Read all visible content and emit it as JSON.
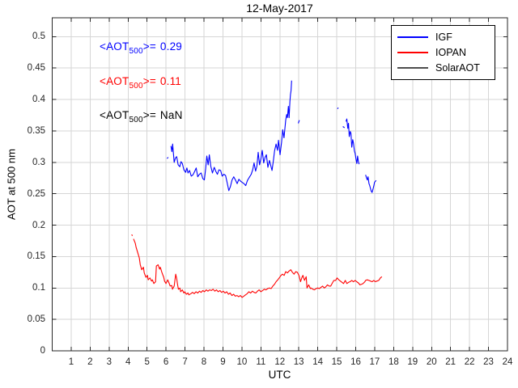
{
  "chart_data": {
    "type": "line",
    "title": "12-May-2017",
    "xlabel": "UTC",
    "ylabel": "AOT at 500 nm",
    "xlim": [
      0,
      24
    ],
    "ylim": [
      0,
      0.53
    ],
    "grid": true,
    "grid_color": "#d6d6d6",
    "axis_color": "#262626",
    "legend_position": "top-right",
    "x_ticks": [
      1,
      2,
      3,
      4,
      5,
      6,
      7,
      8,
      9,
      10,
      11,
      12,
      13,
      14,
      15,
      16,
      17,
      18,
      19,
      20,
      21,
      22,
      23,
      24
    ],
    "y_ticks": [
      0,
      0.05,
      0.1,
      0.15,
      0.2,
      0.25,
      0.3,
      0.35,
      0.4,
      0.45,
      0.5
    ],
    "y_tick_labels": [
      "0",
      "0.05",
      "0.1",
      "0.15",
      "0.2",
      "0.25",
      "0.3",
      "0.35",
      "0.4",
      "0.45",
      "0.5"
    ],
    "series": [
      {
        "name": "IGF",
        "color": "#0000ff",
        "mean_label": "0.29",
        "points": [
          [
            6.05,
            0.306
          ],
          [
            6.12,
            0.308
          ],
          null,
          [
            6.26,
            0.326
          ],
          [
            6.31,
            0.317
          ],
          [
            6.35,
            0.329
          ],
          [
            6.43,
            0.3
          ],
          [
            6.5,
            0.307
          ],
          [
            6.56,
            0.309
          ],
          [
            6.64,
            0.296
          ],
          [
            6.73,
            0.293
          ],
          [
            6.79,
            0.301
          ],
          [
            6.86,
            0.298
          ],
          [
            6.94,
            0.288
          ],
          [
            7.03,
            0.284
          ],
          [
            7.1,
            0.291
          ],
          [
            7.16,
            0.283
          ],
          [
            7.24,
            0.287
          ],
          [
            7.33,
            0.278
          ],
          [
            7.42,
            0.28
          ],
          [
            7.5,
            0.285
          ],
          [
            7.59,
            0.291
          ],
          [
            7.67,
            0.277
          ],
          [
            7.76,
            0.281
          ],
          [
            7.85,
            0.283
          ],
          [
            7.94,
            0.274
          ],
          [
            8.02,
            0.272
          ],
          [
            8.09,
            0.29
          ],
          [
            8.15,
            0.31
          ],
          [
            8.22,
            0.296
          ],
          [
            8.28,
            0.312
          ],
          [
            8.36,
            0.294
          ],
          [
            8.45,
            0.283
          ],
          [
            8.54,
            0.292
          ],
          [
            8.62,
            0.286
          ],
          [
            8.71,
            0.281
          ],
          [
            8.79,
            0.288
          ],
          [
            8.88,
            0.287
          ],
          [
            8.96,
            0.278
          ],
          [
            9.05,
            0.281
          ],
          [
            9.14,
            0.279
          ],
          [
            9.22,
            0.268
          ],
          [
            9.31,
            0.255
          ],
          [
            9.39,
            0.261
          ],
          [
            9.48,
            0.272
          ],
          [
            9.57,
            0.277
          ],
          [
            9.66,
            0.272
          ],
          [
            9.75,
            0.266
          ],
          [
            9.84,
            0.273
          ],
          [
            9.93,
            0.27
          ],
          [
            10.02,
            0.268
          ],
          [
            10.11,
            0.266
          ],
          [
            10.2,
            0.263
          ],
          [
            10.29,
            0.271
          ],
          [
            10.39,
            0.276
          ],
          [
            10.49,
            0.281
          ],
          [
            10.57,
            0.288
          ],
          [
            10.64,
            0.299
          ],
          [
            10.72,
            0.286
          ],
          [
            10.79,
            0.294
          ],
          [
            10.86,
            0.316
          ],
          [
            10.93,
            0.296
          ],
          [
            11.0,
            0.305
          ],
          [
            11.07,
            0.319
          ],
          [
            11.15,
            0.299
          ],
          [
            11.22,
            0.308
          ],
          [
            11.29,
            0.312
          ],
          [
            11.37,
            0.292
          ],
          [
            11.45,
            0.303
          ],
          [
            11.52,
            0.295
          ],
          [
            11.59,
            0.287
          ],
          [
            11.66,
            0.303
          ],
          [
            11.72,
            0.318
          ],
          [
            11.8,
            0.329
          ],
          [
            11.88,
            0.319
          ],
          [
            11.93,
            0.335
          ],
          [
            12.01,
            0.312
          ],
          [
            12.09,
            0.332
          ],
          [
            12.15,
            0.352
          ],
          [
            12.22,
            0.339
          ],
          [
            12.31,
            0.367
          ],
          [
            12.36,
            0.376
          ],
          [
            12.4,
            0.371
          ],
          [
            12.45,
            0.389
          ],
          [
            12.49,
            0.371
          ],
          [
            12.53,
            0.397
          ],
          [
            12.56,
            0.408
          ],
          [
            12.59,
            0.414
          ],
          [
            12.62,
            0.43
          ],
          null,
          [
            12.97,
            0.362
          ],
          [
            13.03,
            0.367
          ],
          null,
          [
            15.04,
            0.385
          ],
          [
            15.08,
            0.387
          ],
          null,
          [
            15.32,
            0.357
          ],
          [
            15.41,
            0.355
          ],
          null,
          [
            15.49,
            0.365
          ],
          [
            15.53,
            0.369
          ],
          [
            15.58,
            0.354
          ],
          [
            15.62,
            0.362
          ],
          [
            15.66,
            0.341
          ],
          [
            15.71,
            0.349
          ],
          [
            15.75,
            0.346
          ],
          [
            15.79,
            0.324
          ],
          [
            15.84,
            0.336
          ],
          [
            15.88,
            0.331
          ],
          [
            15.93,
            0.318
          ],
          [
            15.97,
            0.314
          ],
          [
            16.02,
            0.304
          ],
          [
            16.06,
            0.298
          ],
          [
            16.1,
            0.31
          ],
          [
            16.14,
            0.301
          ],
          [
            16.18,
            0.297
          ],
          null,
          [
            16.52,
            0.28
          ],
          [
            16.57,
            0.275
          ],
          [
            16.61,
            0.272
          ],
          [
            16.65,
            0.277
          ],
          [
            16.7,
            0.266
          ],
          [
            16.74,
            0.263
          ],
          [
            16.78,
            0.258
          ],
          [
            16.82,
            0.254
          ],
          [
            16.86,
            0.252
          ],
          [
            16.91,
            0.257
          ],
          [
            16.95,
            0.262
          ],
          [
            16.99,
            0.268
          ],
          [
            17.04,
            0.27
          ],
          [
            17.08,
            0.271
          ]
        ]
      },
      {
        "name": "IOPAN",
        "color": "#ff0000",
        "mean_label": "0.11",
        "points": [
          [
            4.19,
            0.185
          ],
          [
            4.23,
            0.183
          ],
          null,
          [
            4.29,
            0.178
          ],
          [
            4.38,
            0.171
          ],
          [
            4.42,
            0.165
          ],
          [
            4.51,
            0.156
          ],
          [
            4.59,
            0.148
          ],
          [
            4.64,
            0.137
          ],
          [
            4.72,
            0.129
          ],
          [
            4.81,
            0.133
          ],
          [
            4.85,
            0.124
          ],
          [
            4.94,
            0.117
          ],
          [
            5.02,
            0.12
          ],
          [
            5.06,
            0.113
          ],
          [
            5.15,
            0.116
          ],
          [
            5.24,
            0.111
          ],
          [
            5.28,
            0.113
          ],
          [
            5.36,
            0.107
          ],
          [
            5.45,
            0.11
          ],
          [
            5.49,
            0.135
          ],
          [
            5.58,
            0.137
          ],
          [
            5.66,
            0.13
          ],
          [
            5.7,
            0.133
          ],
          [
            5.79,
            0.124
          ],
          [
            5.88,
            0.117
          ],
          [
            5.92,
            0.111
          ],
          [
            6.0,
            0.107
          ],
          [
            6.09,
            0.113
          ],
          [
            6.13,
            0.11
          ],
          [
            6.22,
            0.103
          ],
          [
            6.3,
            0.104
          ],
          [
            6.34,
            0.098
          ],
          [
            6.43,
            0.103
          ],
          [
            6.51,
            0.122
          ],
          [
            6.56,
            0.115
          ],
          [
            6.6,
            0.107
          ],
          [
            6.65,
            0.098
          ],
          [
            6.73,
            0.1
          ],
          [
            6.77,
            0.094
          ],
          [
            6.86,
            0.097
          ],
          [
            6.94,
            0.092
          ],
          [
            6.99,
            0.094
          ],
          [
            7.07,
            0.09
          ],
          [
            7.16,
            0.092
          ],
          [
            7.2,
            0.089
          ],
          [
            7.31,
            0.091
          ],
          [
            7.4,
            0.093
          ],
          [
            7.49,
            0.091
          ],
          [
            7.58,
            0.094
          ],
          [
            7.67,
            0.092
          ],
          [
            7.76,
            0.095
          ],
          [
            7.85,
            0.093
          ],
          [
            7.94,
            0.096
          ],
          [
            8.03,
            0.094
          ],
          [
            8.12,
            0.097
          ],
          [
            8.21,
            0.095
          ],
          [
            8.3,
            0.097
          ],
          [
            8.39,
            0.096
          ],
          [
            8.48,
            0.098
          ],
          [
            8.57,
            0.095
          ],
          [
            8.66,
            0.097
          ],
          [
            8.75,
            0.094
          ],
          [
            8.84,
            0.096
          ],
          [
            8.93,
            0.093
          ],
          [
            9.02,
            0.095
          ],
          [
            9.11,
            0.092
          ],
          [
            9.2,
            0.094
          ],
          [
            9.29,
            0.09
          ],
          [
            9.38,
            0.092
          ],
          [
            9.47,
            0.088
          ],
          [
            9.56,
            0.09
          ],
          [
            9.65,
            0.087
          ],
          [
            9.74,
            0.088
          ],
          [
            9.83,
            0.086
          ],
          [
            9.92,
            0.088
          ],
          [
            10.01,
            0.085
          ],
          [
            10.1,
            0.087
          ],
          [
            10.19,
            0.089
          ],
          [
            10.28,
            0.091
          ],
          [
            10.37,
            0.094
          ],
          [
            10.46,
            0.092
          ],
          [
            10.55,
            0.095
          ],
          [
            10.64,
            0.093
          ],
          [
            10.73,
            0.092
          ],
          [
            10.82,
            0.095
          ],
          [
            10.91,
            0.097
          ],
          [
            11.0,
            0.094
          ],
          [
            11.09,
            0.096
          ],
          [
            11.18,
            0.098
          ],
          [
            11.27,
            0.097
          ],
          [
            11.36,
            0.099
          ],
          [
            11.45,
            0.1
          ],
          [
            11.54,
            0.099
          ],
          [
            11.63,
            0.103
          ],
          [
            11.72,
            0.106
          ],
          [
            11.8,
            0.11
          ],
          [
            11.89,
            0.113
          ],
          [
            11.97,
            0.116
          ],
          [
            12.06,
            0.12
          ],
          [
            12.14,
            0.122
          ],
          [
            12.23,
            0.12
          ],
          [
            12.31,
            0.126
          ],
          [
            12.4,
            0.124
          ],
          [
            12.49,
            0.127
          ],
          [
            12.58,
            0.129
          ],
          [
            12.66,
            0.125
          ],
          [
            12.75,
            0.122
          ],
          [
            12.84,
            0.126
          ],
          [
            12.92,
            0.125
          ],
          [
            13.01,
            0.12
          ],
          [
            13.09,
            0.11
          ],
          [
            13.18,
            0.118
          ],
          [
            13.22,
            0.12
          ],
          [
            13.3,
            0.112
          ],
          [
            13.39,
            0.118
          ],
          [
            13.43,
            0.1
          ],
          [
            13.52,
            0.105
          ],
          [
            13.61,
            0.099
          ],
          [
            13.65,
            0.1
          ],
          [
            13.74,
            0.098
          ],
          [
            13.82,
            0.097
          ],
          [
            13.91,
            0.099
          ],
          [
            14.0,
            0.1
          ],
          [
            14.08,
            0.099
          ],
          [
            14.17,
            0.101
          ],
          [
            14.25,
            0.103
          ],
          [
            14.34,
            0.1
          ],
          [
            14.43,
            0.102
          ],
          [
            14.51,
            0.105
          ],
          [
            14.6,
            0.103
          ],
          [
            14.68,
            0.103
          ],
          [
            14.77,
            0.108
          ],
          [
            14.85,
            0.112
          ],
          [
            14.94,
            0.112
          ],
          [
            15.02,
            0.116
          ],
          [
            15.11,
            0.113
          ],
          [
            15.19,
            0.111
          ],
          [
            15.28,
            0.109
          ],
          [
            15.36,
            0.107
          ],
          [
            15.45,
            0.112
          ],
          [
            15.53,
            0.107
          ],
          [
            15.62,
            0.109
          ],
          [
            15.7,
            0.11
          ],
          [
            15.79,
            0.112
          ],
          [
            15.88,
            0.11
          ],
          [
            15.97,
            0.112
          ],
          [
            16.05,
            0.11
          ],
          [
            16.14,
            0.108
          ],
          [
            16.22,
            0.105
          ],
          [
            16.31,
            0.106
          ],
          [
            16.39,
            0.107
          ],
          [
            16.48,
            0.11
          ],
          [
            16.52,
            0.112
          ],
          [
            16.61,
            0.113
          ],
          [
            16.69,
            0.112
          ],
          [
            16.78,
            0.111
          ],
          [
            16.86,
            0.11
          ],
          [
            16.95,
            0.112
          ],
          [
            17.03,
            0.11
          ],
          [
            17.12,
            0.111
          ],
          [
            17.21,
            0.112
          ],
          [
            17.3,
            0.116
          ],
          [
            17.38,
            0.118
          ]
        ]
      },
      {
        "name": "SolarAOT",
        "color": "#4d4d4d",
        "mean_label": "NaN",
        "points": []
      }
    ]
  },
  "annotations": [
    {
      "prefix": "<AOT",
      "sub": "500",
      "eq": ">=",
      "value": "0.29",
      "color": "#0000ff"
    },
    {
      "prefix": "<AOT",
      "sub": "500",
      "eq": ">=",
      "value": "0.11",
      "color": "#ff0000"
    },
    {
      "prefix": "<AOT",
      "sub": "500",
      "eq": ">=",
      "value": "NaN",
      "color": "#000000"
    }
  ],
  "legend": {
    "items": [
      {
        "label": "IGF"
      },
      {
        "label": "IOPAN"
      },
      {
        "label": "SolarAOT"
      }
    ]
  }
}
